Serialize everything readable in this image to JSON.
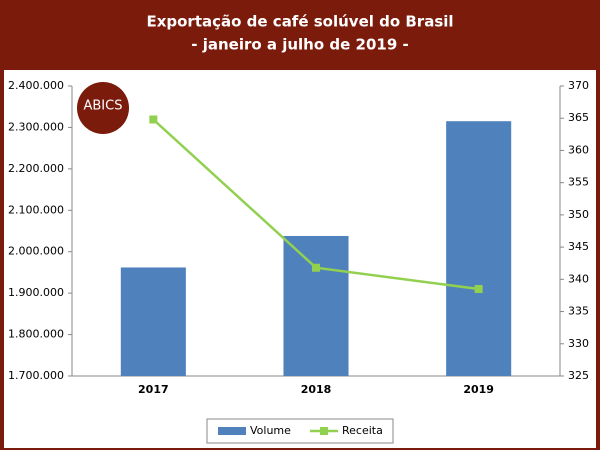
{
  "chart_data": {
    "type": "bar",
    "title": "Exportação de café solúvel do Brasil",
    "subtitle": "- janeiro a julho de 2019 -",
    "logo": "ABICS",
    "categories": [
      "2017",
      "2018",
      "2019"
    ],
    "series": [
      {
        "name": "Volume",
        "type": "bar",
        "color": "#4f81bd",
        "values": [
          1962000,
          2038000,
          2315000
        ]
      },
      {
        "name": "Receita",
        "type": "line",
        "axis": "y2",
        "color": "#92d050",
        "values": [
          364.8,
          341.8,
          338.5
        ]
      }
    ],
    "ylim": [
      1700000,
      2400000
    ],
    "yticks": [
      {
        "value": 1700000,
        "label": "1.700.000"
      },
      {
        "value": 1800000,
        "label": "1.800.000"
      },
      {
        "value": 1900000,
        "label": "1.900.000"
      },
      {
        "value": 2000000,
        "label": "2.000.000"
      },
      {
        "value": 2100000,
        "label": "2.100.000"
      },
      {
        "value": 2200000,
        "label": "2.200.000"
      },
      {
        "value": 2300000,
        "label": "2.300.000"
      },
      {
        "value": 2400000,
        "label": "2.400.000"
      }
    ],
    "y2lim": [
      325,
      370
    ],
    "y2ticks": [
      325,
      330,
      335,
      340,
      345,
      350,
      355,
      360,
      365,
      370
    ],
    "legend": "bottom"
  }
}
